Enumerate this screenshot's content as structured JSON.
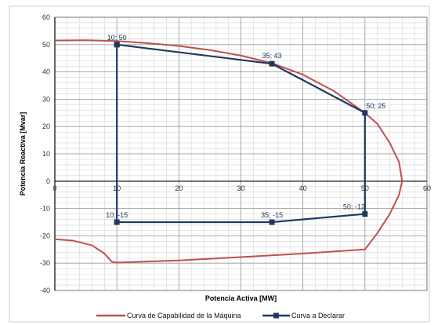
{
  "chart_data": {
    "type": "line",
    "xlabel": "Potencia Activa [MW]",
    "ylabel": "Potencia Reactiva [Mvar]",
    "xlim": [
      0,
      60
    ],
    "ylim": [
      -40,
      60
    ],
    "x_ticks": [
      0,
      10,
      20,
      30,
      40,
      50,
      60
    ],
    "y_ticks": [
      -40,
      -30,
      -20,
      -10,
      0,
      10,
      20,
      30,
      40,
      50,
      60
    ],
    "grid": true,
    "legend_position": "bottom",
    "series": [
      {
        "name": "Curva de Capabilidad de la Máquina",
        "color": "#c0504d",
        "markers": false,
        "points": [
          [
            0,
            51.5
          ],
          [
            5,
            51.6
          ],
          [
            10,
            51.3
          ],
          [
            15,
            50.5
          ],
          [
            20,
            49.5
          ],
          [
            25,
            48.0
          ],
          [
            30,
            46.0
          ],
          [
            35,
            43.2
          ],
          [
            40,
            39.0
          ],
          [
            45,
            33.0
          ],
          [
            50,
            25.0
          ],
          [
            52,
            21.0
          ],
          [
            54,
            14.0
          ],
          [
            55.5,
            7.0
          ],
          [
            56,
            0
          ],
          [
            55.5,
            -5.0
          ],
          [
            54,
            -12.0
          ],
          [
            52,
            -19.0
          ],
          [
            50,
            -25.0
          ],
          [
            40,
            -26.5
          ],
          [
            30,
            -27.8
          ],
          [
            20,
            -29.0
          ],
          [
            10,
            -29.8
          ],
          [
            9.2,
            -29.5
          ],
          [
            8,
            -26.5
          ],
          [
            6,
            -23.5
          ],
          [
            3,
            -21.8
          ],
          [
            0,
            -21.2
          ]
        ]
      },
      {
        "name": "Curva a Declarar",
        "color": "#1f3a60",
        "markers": true,
        "points": [
          [
            10,
            50
          ],
          [
            35,
            43
          ],
          [
            50,
            25
          ],
          [
            50,
            -12
          ],
          [
            35,
            -15
          ],
          [
            10,
            -15
          ],
          [
            10,
            50
          ]
        ]
      }
    ],
    "annotations": [
      {
        "text": "10; 50",
        "x": 10,
        "y": 50
      },
      {
        "text": "35; 43",
        "x": 35,
        "y": 43
      },
      {
        "text": "50; 25",
        "x": 50,
        "y": 25
      },
      {
        "text": "10; -15",
        "x": 10,
        "y": -15
      },
      {
        "text": "35; -15",
        "x": 35,
        "y": -15
      },
      {
        "text": "50; -12",
        "x": 50,
        "y": -12
      }
    ]
  }
}
